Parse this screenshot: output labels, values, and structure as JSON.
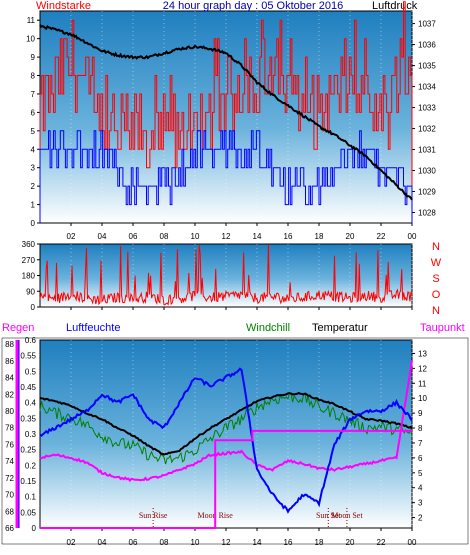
{
  "chart_data": [
    {
      "type": "line",
      "title": "24 hour graph day : 05 Oktober 2016",
      "left_label": "Windstarke",
      "right_label": "Luftdruck",
      "x_ticks": [
        "02",
        "04",
        "06",
        "08",
        "10",
        "12",
        "14",
        "16",
        "18",
        "20",
        "22",
        "00"
      ],
      "left_ticks": [
        "0",
        "1",
        "2",
        "3",
        "4",
        "5",
        "6",
        "7",
        "8",
        "9",
        "10",
        "11"
      ],
      "right_ticks": [
        "1028",
        "1029",
        "1030",
        "1031",
        "1032",
        "1033",
        "1034",
        "1035",
        "1036",
        "1037"
      ],
      "left_range": [
        0,
        11.5
      ],
      "right_range": [
        1027.5,
        1037.6
      ],
      "series": [
        {
          "key": "wind_gust",
          "color": "#ff0000",
          "axis": "left",
          "x": [
            0,
            2,
            4,
            6,
            8,
            10,
            12,
            14,
            16,
            18,
            20,
            22,
            24
          ],
          "y": [
            6,
            9,
            5,
            5,
            4,
            5,
            7,
            8,
            7,
            6,
            8,
            5,
            9
          ]
        },
        {
          "key": "wind_avg",
          "color": "#0000ff",
          "axis": "left",
          "x": [
            0,
            2,
            4,
            6,
            8,
            10,
            12,
            14,
            16,
            18,
            20,
            22,
            24
          ],
          "y": [
            4,
            4,
            4,
            2,
            2,
            4,
            4,
            4,
            2,
            2,
            4,
            3,
            2
          ]
        },
        {
          "key": "pressure",
          "color": "#000000",
          "axis": "right",
          "x": [
            0,
            1,
            2,
            3,
            4,
            5,
            6,
            7,
            8,
            9,
            10,
            11,
            12,
            13,
            14,
            15,
            16,
            17,
            18,
            19,
            20,
            21,
            22,
            23,
            24
          ],
          "y": [
            1036.9,
            1036.7,
            1036.5,
            1036.1,
            1035.7,
            1035.5,
            1035.4,
            1035.4,
            1035.6,
            1035.8,
            1035.9,
            1035.8,
            1035.6,
            1035.0,
            1034.2,
            1033.6,
            1033.1,
            1032.6,
            1032.1,
            1031.7,
            1031.2,
            1030.7,
            1030.0,
            1029.3,
            1028.6
          ]
        }
      ]
    },
    {
      "type": "scatter",
      "title": "",
      "right_letters": [
        "N",
        "W",
        "S",
        "O",
        "N"
      ],
      "x_ticks": [
        "02",
        "04",
        "06",
        "08",
        "10",
        "12",
        "14",
        "16",
        "18",
        "20",
        "22",
        "00"
      ],
      "left_ticks": [
        "0",
        "90",
        "180",
        "270",
        "360"
      ],
      "left_range": [
        0,
        360
      ],
      "series": [
        {
          "key": "wind_direction",
          "color": "#ff0000",
          "x": [
            0,
            1,
            2,
            3,
            4,
            5,
            6,
            7,
            8,
            9,
            10,
            11,
            12,
            13,
            14,
            15,
            16,
            17,
            18,
            19,
            20,
            21,
            22,
            23,
            24
          ],
          "y": [
            60,
            45,
            70,
            50,
            40,
            55,
            45,
            60,
            40,
            50,
            65,
            55,
            60,
            70,
            50,
            60,
            45,
            55,
            70,
            60,
            50,
            65,
            55,
            70,
            60
          ]
        }
      ]
    },
    {
      "type": "line",
      "title": "",
      "header_labels": {
        "rain": "Regen",
        "humidity": "Luftfeuchte",
        "windchill": "Windchill",
        "temperature": "Temperatur",
        "dewpoint": "Taupunkt"
      },
      "x_ticks": [
        "02",
        "04",
        "06",
        "08",
        "10",
        "12",
        "14",
        "16",
        "18",
        "20",
        "22",
        "00"
      ],
      "rain_ticks": [
        "0",
        "0.05",
        "0.1",
        "0.15",
        "0.2",
        "0.25",
        "0.3",
        "0.35",
        "0.4",
        "0.45",
        "0.5",
        "0.55",
        "0.6"
      ],
      "humidity_ticks": [
        "66",
        "68",
        "70",
        "72",
        "74",
        "76",
        "78",
        "80",
        "82",
        "84",
        "86",
        "88"
      ],
      "temp_ticks": [
        "2",
        "3",
        "4",
        "5",
        "6",
        "7",
        "8",
        "9",
        "10",
        "11",
        "12",
        "13"
      ],
      "temp_range": [
        1.3,
        13.9
      ],
      "humidity_range": [
        66,
        88.5
      ],
      "rain_range": [
        0,
        0.6
      ],
      "annotations": [
        {
          "text": "Sun Rise",
          "x": 7.3
        },
        {
          "text": "Moon Rise",
          "x": 11.3
        },
        {
          "text": "Sun Set",
          "x": 18.6
        },
        {
          "text": "Moon Set",
          "x": 19.8
        }
      ],
      "series": [
        {
          "key": "temperature",
          "color": "#000000",
          "axis": "temp",
          "x": [
            0,
            1,
            2,
            3,
            4,
            5,
            6,
            7,
            8,
            9,
            10,
            11,
            12,
            13,
            14,
            15,
            16,
            17,
            18,
            19,
            20,
            21,
            22,
            23,
            24
          ],
          "y": [
            10.0,
            9.8,
            9.5,
            9.0,
            8.6,
            8.0,
            7.5,
            6.8,
            6.2,
            6.5,
            7.3,
            8.0,
            8.6,
            9.2,
            9.8,
            10.1,
            10.3,
            10.3,
            9.9,
            9.6,
            9.1,
            8.6,
            8.5,
            8.3,
            8.0
          ]
        },
        {
          "key": "windchill",
          "color": "#008000",
          "axis": "temp",
          "x": [
            0,
            1,
            2,
            3,
            4,
            5,
            6,
            7,
            8,
            9,
            10,
            11,
            12,
            13,
            14,
            15,
            16,
            17,
            18,
            19,
            20,
            21,
            22,
            23,
            24
          ],
          "y": [
            9.5,
            9.0,
            8.7,
            8.2,
            7.5,
            7.0,
            6.8,
            6.2,
            5.8,
            6.0,
            6.5,
            7.3,
            8.0,
            8.6,
            9.4,
            9.9,
            10.1,
            10.0,
            9.4,
            9.0,
            8.5,
            8.0,
            8.1,
            7.9,
            7.6
          ]
        },
        {
          "key": "dewpoint",
          "color": "#ff00ff",
          "axis": "temp",
          "x": [
            0,
            1,
            2,
            3,
            4,
            5,
            6,
            7,
            8,
            9,
            10,
            11,
            12,
            13,
            14,
            15,
            16,
            17,
            18,
            19,
            20,
            21,
            22,
            23,
            24
          ],
          "y": [
            6.0,
            6.2,
            6.0,
            5.7,
            5.0,
            4.7,
            4.5,
            4.6,
            4.8,
            5.2,
            5.6,
            6.2,
            6.3,
            6.4,
            5.5,
            5.2,
            5.8,
            5.6,
            5.3,
            5.2,
            5.4,
            5.6,
            5.8,
            6.0,
            12.5
          ]
        },
        {
          "key": "humidity",
          "color": "#0000ff",
          "axis": "humidity",
          "x": [
            0,
            1,
            2,
            3,
            4,
            5,
            6,
            7,
            8,
            9,
            10,
            11,
            12,
            13,
            14,
            15,
            16,
            17,
            18,
            19,
            20,
            21,
            22,
            23,
            24
          ],
          "y": [
            77,
            78,
            79,
            80,
            82,
            81,
            82,
            79,
            78,
            81,
            84,
            83,
            84,
            85,
            73,
            70,
            68,
            70,
            69,
            76,
            79,
            80,
            80,
            81,
            79
          ]
        },
        {
          "key": "rain",
          "color": "#ff00ff",
          "axis": "rain",
          "x": [
            0,
            11.3,
            11.3,
            13.7,
            13.7,
            24
          ],
          "y": [
            0,
            0,
            0.28,
            0.28,
            0.31,
            0.31
          ]
        }
      ]
    }
  ]
}
